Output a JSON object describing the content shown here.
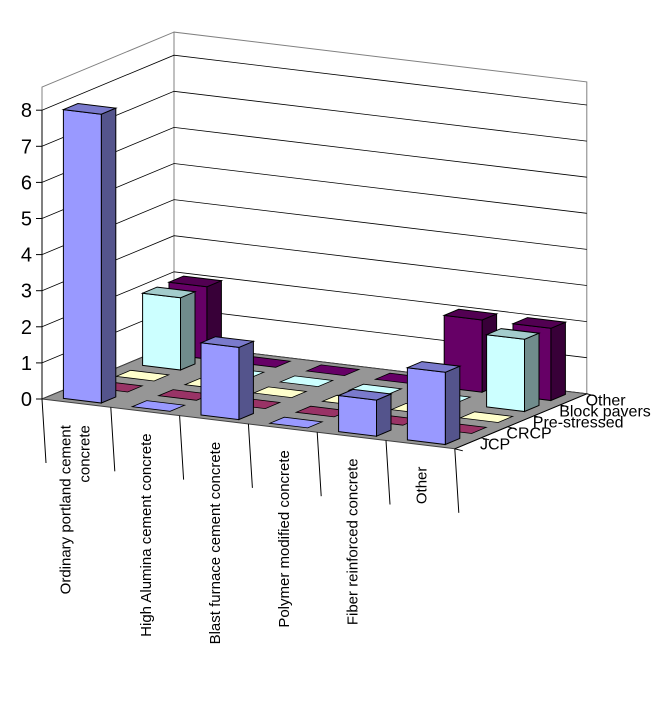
{
  "chart_data": {
    "type": "bar3d",
    "title": "",
    "ylim": [
      0,
      8
    ],
    "yticks": [
      "0",
      "1",
      "2",
      "3",
      "4",
      "5",
      "6",
      "7",
      "8"
    ],
    "categories": [
      "Ordinary portland cement concrete",
      "High Alumina cement concrete",
      "Blast furnace cement concrete",
      "Polymer modified concrete",
      "Fiber reinforced concrete",
      "Other"
    ],
    "series": [
      {
        "name": "JCP",
        "color": "#9999ff",
        "values": [
          8,
          0,
          2,
          0,
          1,
          2
        ]
      },
      {
        "name": "CRCP",
        "color": "#993366",
        "values": [
          0,
          0,
          0,
          0,
          0,
          0
        ]
      },
      {
        "name": "Pre-stressed",
        "color": "#ffffcc",
        "values": [
          0,
          0,
          0,
          0,
          0,
          0
        ]
      },
      {
        "name": "Block pavers",
        "color": "#ccffff",
        "values": [
          2,
          0,
          0,
          0,
          0,
          2
        ]
      },
      {
        "name": "Other",
        "color": "#660066",
        "values": [
          2,
          0,
          0,
          0,
          2,
          2
        ]
      }
    ],
    "floor_color": "#969696",
    "grid": true
  }
}
